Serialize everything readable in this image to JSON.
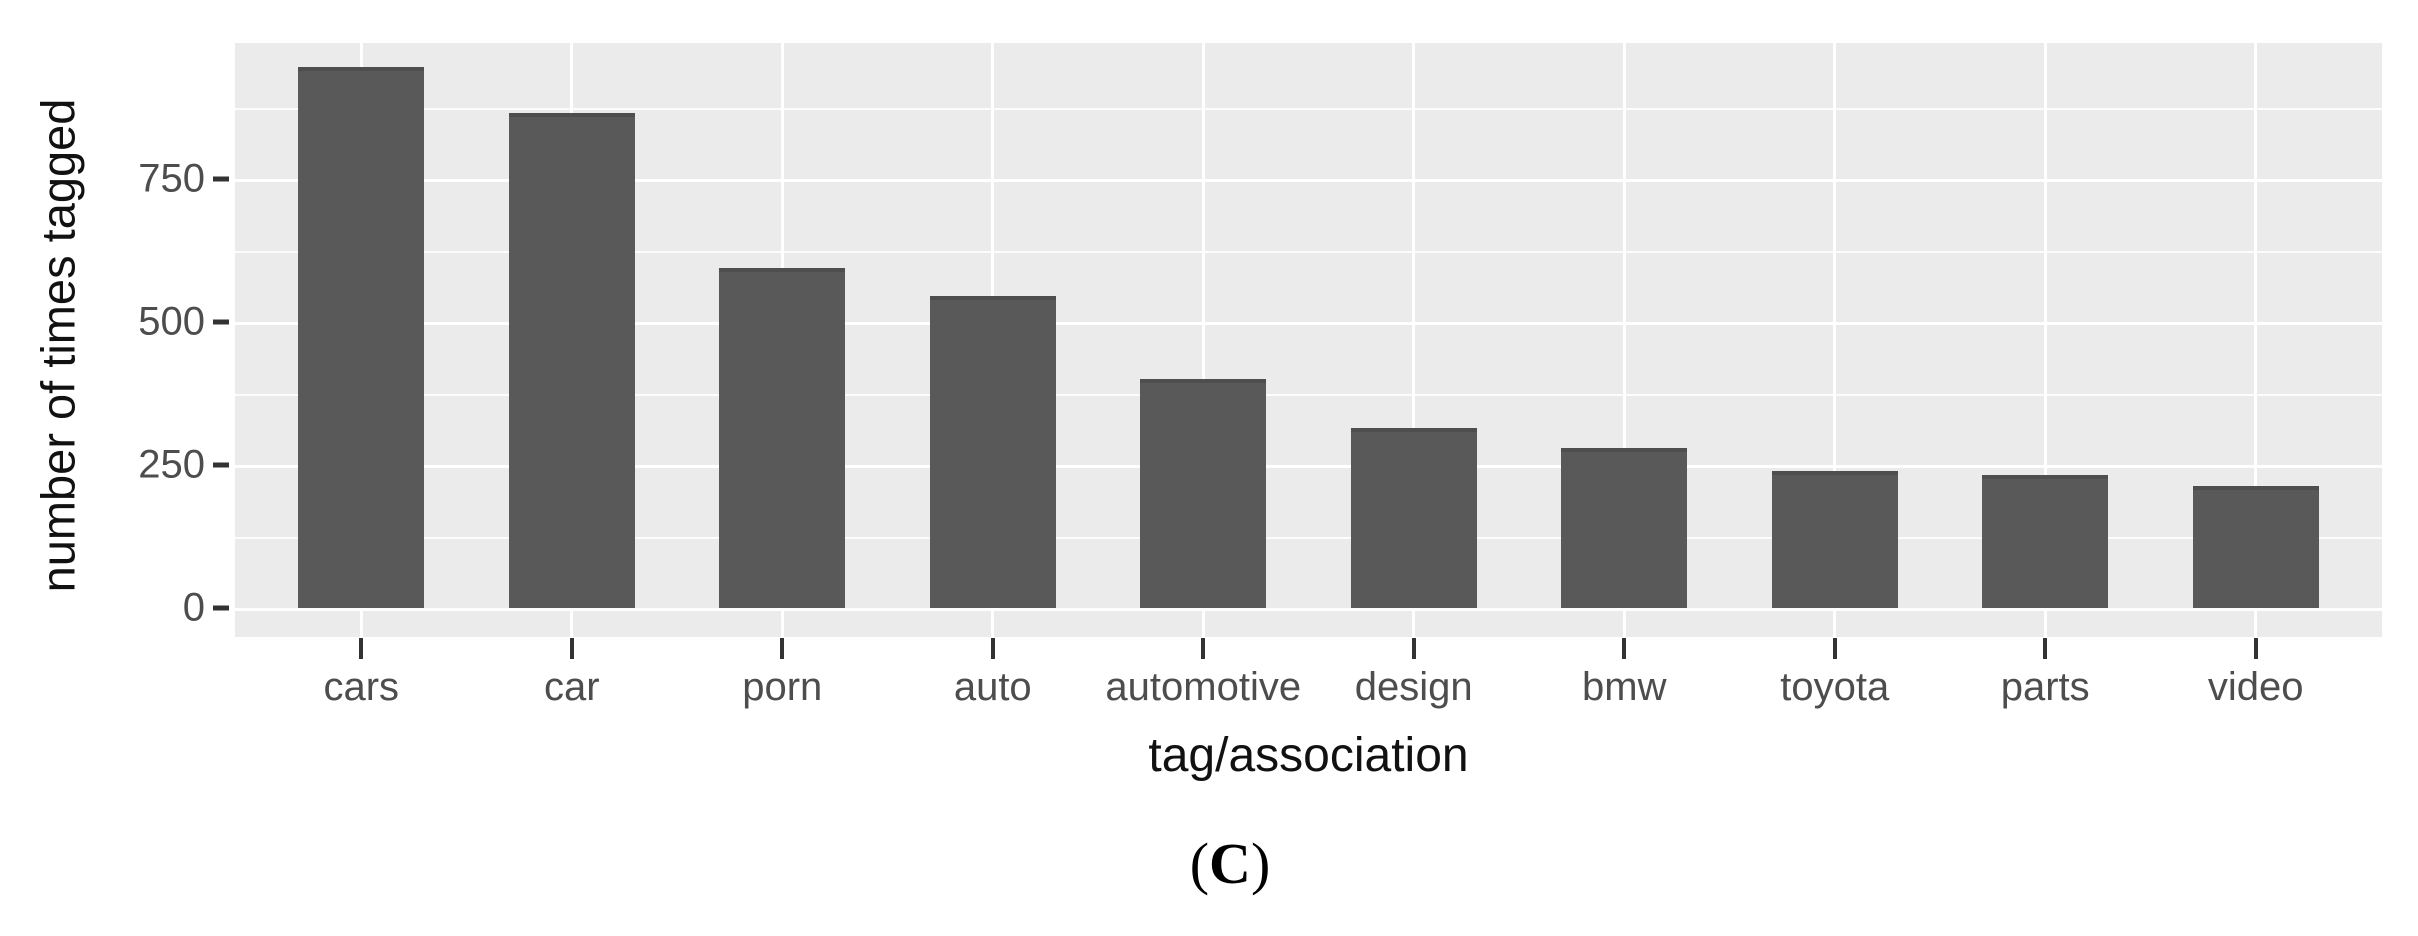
{
  "chart_data": {
    "type": "bar",
    "title": "",
    "categories": [
      "cars",
      "car",
      "porn",
      "auto",
      "automotive",
      "design",
      "bmw",
      "toyota",
      "parts",
      "video"
    ],
    "values": [
      945,
      865,
      595,
      545,
      400,
      315,
      280,
      240,
      233,
      214
    ],
    "xlabel": "tag/association",
    "ylabel": "number of times tagged",
    "yticks": [
      0,
      250,
      500,
      750
    ],
    "minor_gridlines": [
      125,
      375,
      625,
      875
    ],
    "ylim": [
      0,
      990
    ],
    "grid": true,
    "legend_position": "none",
    "bar_color": "#595959",
    "panel_background": "#ebebeb",
    "gridline_color": "#ffffff",
    "tick_label_color": "#4d4d4d",
    "axis_title_color": "#111111"
  },
  "caption": {
    "open_paren": "(",
    "letter": "C",
    "close_paren": ")"
  }
}
